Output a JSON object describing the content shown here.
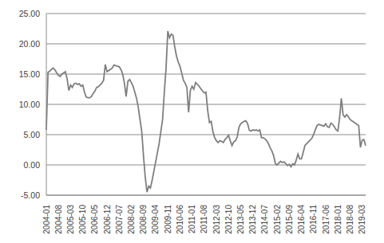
{
  "chart_data": {
    "type": "line",
    "categories": [
      "2004-01",
      null,
      null,
      null,
      null,
      null,
      null,
      "2004-08",
      null,
      null,
      null,
      null,
      null,
      null,
      "2005-03",
      null,
      null,
      null,
      null,
      null,
      null,
      "2005-10",
      null,
      null,
      null,
      null,
      null,
      null,
      "2006-05",
      null,
      null,
      null,
      null,
      null,
      null,
      "2006-12",
      null,
      null,
      null,
      null,
      null,
      null,
      "2007-07",
      null,
      null,
      null,
      null,
      null,
      null,
      "2008-02",
      null,
      null,
      null,
      null,
      null,
      null,
      "2008-09",
      null,
      null,
      null,
      null,
      null,
      null,
      "2009-04",
      null,
      null,
      null,
      null,
      null,
      null,
      "2009-11",
      null,
      null,
      null,
      null,
      null,
      null,
      "2010-06",
      null,
      null,
      null,
      null,
      null,
      null,
      "2011-01",
      null,
      null,
      null,
      null,
      null,
      null,
      "2011-08",
      null,
      null,
      null,
      null,
      null,
      null,
      "2012-03",
      null,
      null,
      null,
      null,
      null,
      null,
      "2012-10",
      null,
      null,
      null,
      null,
      null,
      null,
      "2013-05",
      null,
      null,
      null,
      null,
      null,
      null,
      "2013-12",
      null,
      null,
      null,
      null,
      null,
      null,
      "2014-07",
      null,
      null,
      null,
      null,
      null,
      null,
      "2015-02",
      null,
      null,
      null,
      null,
      null,
      null,
      "2015-09",
      null,
      null,
      null,
      null,
      null,
      null,
      "2016-04",
      null,
      null,
      null,
      null,
      null,
      null,
      "2016-11",
      null,
      null,
      null,
      null,
      null,
      null,
      "2017-06",
      null,
      null,
      null,
      null,
      null,
      null,
      "2018-01",
      null,
      null,
      null,
      null,
      null,
      null,
      "2018-08",
      null,
      null,
      null,
      null,
      null,
      null,
      "2019-03",
      null,
      null
    ],
    "values": [
      5.8,
      15.3,
      15.5,
      15.8,
      16.0,
      15.7,
      15.2,
      14.8,
      14.6,
      15.0,
      15.2,
      15.4,
      14.2,
      12.3,
      13.2,
      12.8,
      13.4,
      13.5,
      13.3,
      13.4,
      13.0,
      13.2,
      12.0,
      11.2,
      11.1,
      11.1,
      11.3,
      11.8,
      12.2,
      12.8,
      12.9,
      13.2,
      13.5,
      14.0,
      16.6,
      15.4,
      15.6,
      15.8,
      16.0,
      16.5,
      16.4,
      16.3,
      16.2,
      15.8,
      15.0,
      13.5,
      11.3,
      13.8,
      14.1,
      13.6,
      13.0,
      12.0,
      11.0,
      9.5,
      7.5,
      5.5,
      1.5,
      -2.0,
      -4.5,
      -3.5,
      -3.8,
      -2.5,
      -1.0,
      0.5,
      2.0,
      3.5,
      5.5,
      7.5,
      12.0,
      16.0,
      22.1,
      21.0,
      21.6,
      21.4,
      19.5,
      18.0,
      17.0,
      16.3,
      15.2,
      14.0,
      13.5,
      12.8,
      8.7,
      12.3,
      13.0,
      12.5,
      13.6,
      13.3,
      13.0,
      12.6,
      12.2,
      11.9,
      12.0,
      9.0,
      7.0,
      7.2,
      5.5,
      4.5,
      4.0,
      3.7,
      4.0,
      3.9,
      3.7,
      4.2,
      4.5,
      4.9,
      4.0,
      3.2,
      3.8,
      4.0,
      4.6,
      6.2,
      6.8,
      7.0,
      7.2,
      7.3,
      6.8,
      5.7,
      5.6,
      5.8,
      5.7,
      5.8,
      5.6,
      5.8,
      4.5,
      4.5,
      4.3,
      4.0,
      3.5,
      2.8,
      2.3,
      1.5,
      0.2,
      0.0,
      0.3,
      0.6,
      0.4,
      0.5,
      0.2,
      -0.1,
      0.1,
      -0.3,
      0.2,
      0.0,
      0.8,
      1.8,
      1.0,
      1.0,
      2.0,
      3.2,
      3.5,
      3.8,
      4.1,
      4.4,
      5.0,
      5.8,
      6.5,
      6.7,
      6.6,
      6.5,
      6.4,
      6.8,
      6.3,
      6.2,
      6.9,
      6.7,
      6.3,
      5.8,
      5.6,
      7.8,
      11.0,
      8.3,
      7.9,
      8.3,
      8.0,
      7.5,
      7.3,
      7.1,
      6.9,
      6.7,
      6.5,
      2.9,
      4.1,
      4.2,
      3.2
    ],
    "color": "#7f7f7f",
    "ylim": [
      -5,
      25
    ],
    "yticks": [
      {
        "value": -5,
        "label": "-5.00"
      },
      {
        "value": 0,
        "label": "0.00"
      },
      {
        "value": 5,
        "label": "5.00"
      },
      {
        "value": 10,
        "label": "10.00"
      },
      {
        "value": 15,
        "label": "15.00"
      },
      {
        "value": 20,
        "label": "20.00"
      },
      {
        "value": 25,
        "label": "25.00"
      }
    ],
    "grid": true
  }
}
